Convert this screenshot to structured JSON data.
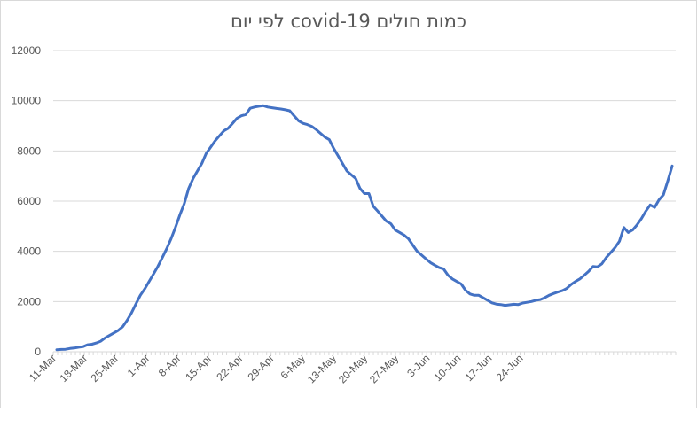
{
  "chart_data": {
    "type": "line",
    "title": "כמות חולים covid-19 לפי יום",
    "xlabel": "",
    "ylabel": "",
    "ylim": [
      0,
      12000
    ],
    "yticks": [
      "0",
      "2000",
      "4000",
      "6000",
      "8000",
      "10000",
      "12000"
    ],
    "x_tick_labels": [
      "11-Mar",
      "18-Mar",
      "25-Mar",
      "1-Apr",
      "8-Apr",
      "15-Apr",
      "22-Apr",
      "29-Apr",
      "6-May",
      "13-May",
      "20-May",
      "27-May",
      "3-Jun",
      "10-Jun",
      "17-Jun",
      "24-Jun"
    ],
    "grid": true,
    "legend": "none",
    "series": [
      {
        "color": "#4472c4",
        "start_date": "2020-03-11",
        "values": [
          80,
          90,
          100,
          130,
          150,
          180,
          200,
          280,
          300,
          350,
          420,
          550,
          650,
          750,
          850,
          1000,
          1250,
          1550,
          1900,
          2250,
          2500,
          2800,
          3100,
          3400,
          3750,
          4100,
          4500,
          4950,
          5450,
          5900,
          6500,
          6900,
          7200,
          7500,
          7900,
          8150,
          8400,
          8600,
          8800,
          8900,
          9100,
          9300,
          9400,
          9450,
          9700,
          9750,
          9780,
          9800,
          9750,
          9720,
          9690,
          9670,
          9640,
          9600,
          9400,
          9200,
          9100,
          9050,
          8980,
          8850,
          8700,
          8550,
          8450,
          8100,
          7800,
          7500,
          7200,
          7050,
          6900,
          6500,
          6300,
          6300,
          5800,
          5600,
          5400,
          5200,
          5100,
          4850,
          4750,
          4650,
          4500,
          4250,
          4000,
          3850,
          3700,
          3550,
          3450,
          3350,
          3300,
          3050,
          2900,
          2800,
          2700,
          2450,
          2300,
          2250,
          2250,
          2150,
          2050,
          1950,
          1900,
          1880,
          1850,
          1870,
          1890,
          1880,
          1940,
          1970,
          2000,
          2050,
          2080,
          2150,
          2250,
          2320,
          2380,
          2430,
          2520,
          2680,
          2800,
          2900,
          3050,
          3200,
          3400,
          3380,
          3500,
          3750,
          3950,
          4150,
          4400,
          4950,
          4750,
          4850,
          5050,
          5300,
          5600,
          5850,
          5750,
          6050,
          6250,
          6800,
          7400
        ]
      }
    ]
  }
}
